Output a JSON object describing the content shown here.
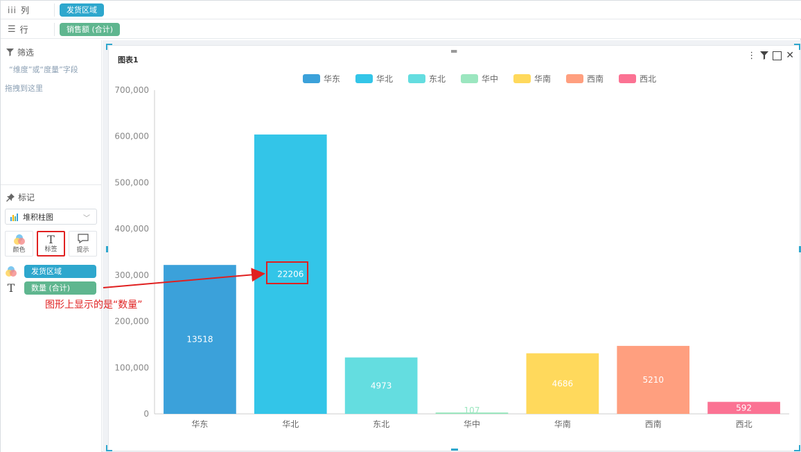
{
  "shelves": {
    "columns": {
      "label": "列",
      "pill": "发货区域"
    },
    "rows": {
      "label": "行",
      "pill": "销售额 (合计)"
    }
  },
  "filter": {
    "title": "筛选",
    "hint": "“维度”或“度量”字段",
    "hint2": "拖拽到这里"
  },
  "marks": {
    "title": "标记",
    "chart_type": "堆积柱图",
    "buttons": {
      "color": "颜色",
      "label": "标签",
      "tooltip": "提示"
    },
    "color_field": "发货区域",
    "label_field": "数量 (合计)"
  },
  "annotation": {
    "text": "图形上显示的是“数量”"
  },
  "card": {
    "title": "图表1"
  },
  "colors": {
    "accent": "#2ea7cd",
    "annotation_red": "#e02020",
    "pill_blue": "#2ea7cd",
    "pill_green": "#5fb68f"
  },
  "chart_data": {
    "type": "bar",
    "categories": [
      "华东",
      "华北",
      "东北",
      "华中",
      "华南",
      "西南",
      "西北"
    ],
    "series": [
      {
        "name": "发货区域",
        "values": [
          322000,
          604000,
          122000,
          3000,
          131000,
          147000,
          26000
        ],
        "labels": [
          "13518",
          "22206",
          "4973",
          "107",
          "4686",
          "5210",
          "592"
        ]
      }
    ],
    "legend": [
      "华东",
      "华北",
      "东北",
      "华中",
      "华南",
      "西南",
      "西北"
    ],
    "bar_colors": [
      "#3ba1da",
      "#33c5e8",
      "#64dde0",
      "#9be6bf",
      "#ffd95c",
      "#ff9f7f",
      "#fb7293"
    ],
    "yticks": [
      "0",
      "100,000",
      "200,000",
      "300,000",
      "400,000",
      "500,000",
      "600,000",
      "700,000"
    ],
    "ylim": [
      0,
      700000
    ],
    "legend_position": "top-center",
    "grid": false
  }
}
